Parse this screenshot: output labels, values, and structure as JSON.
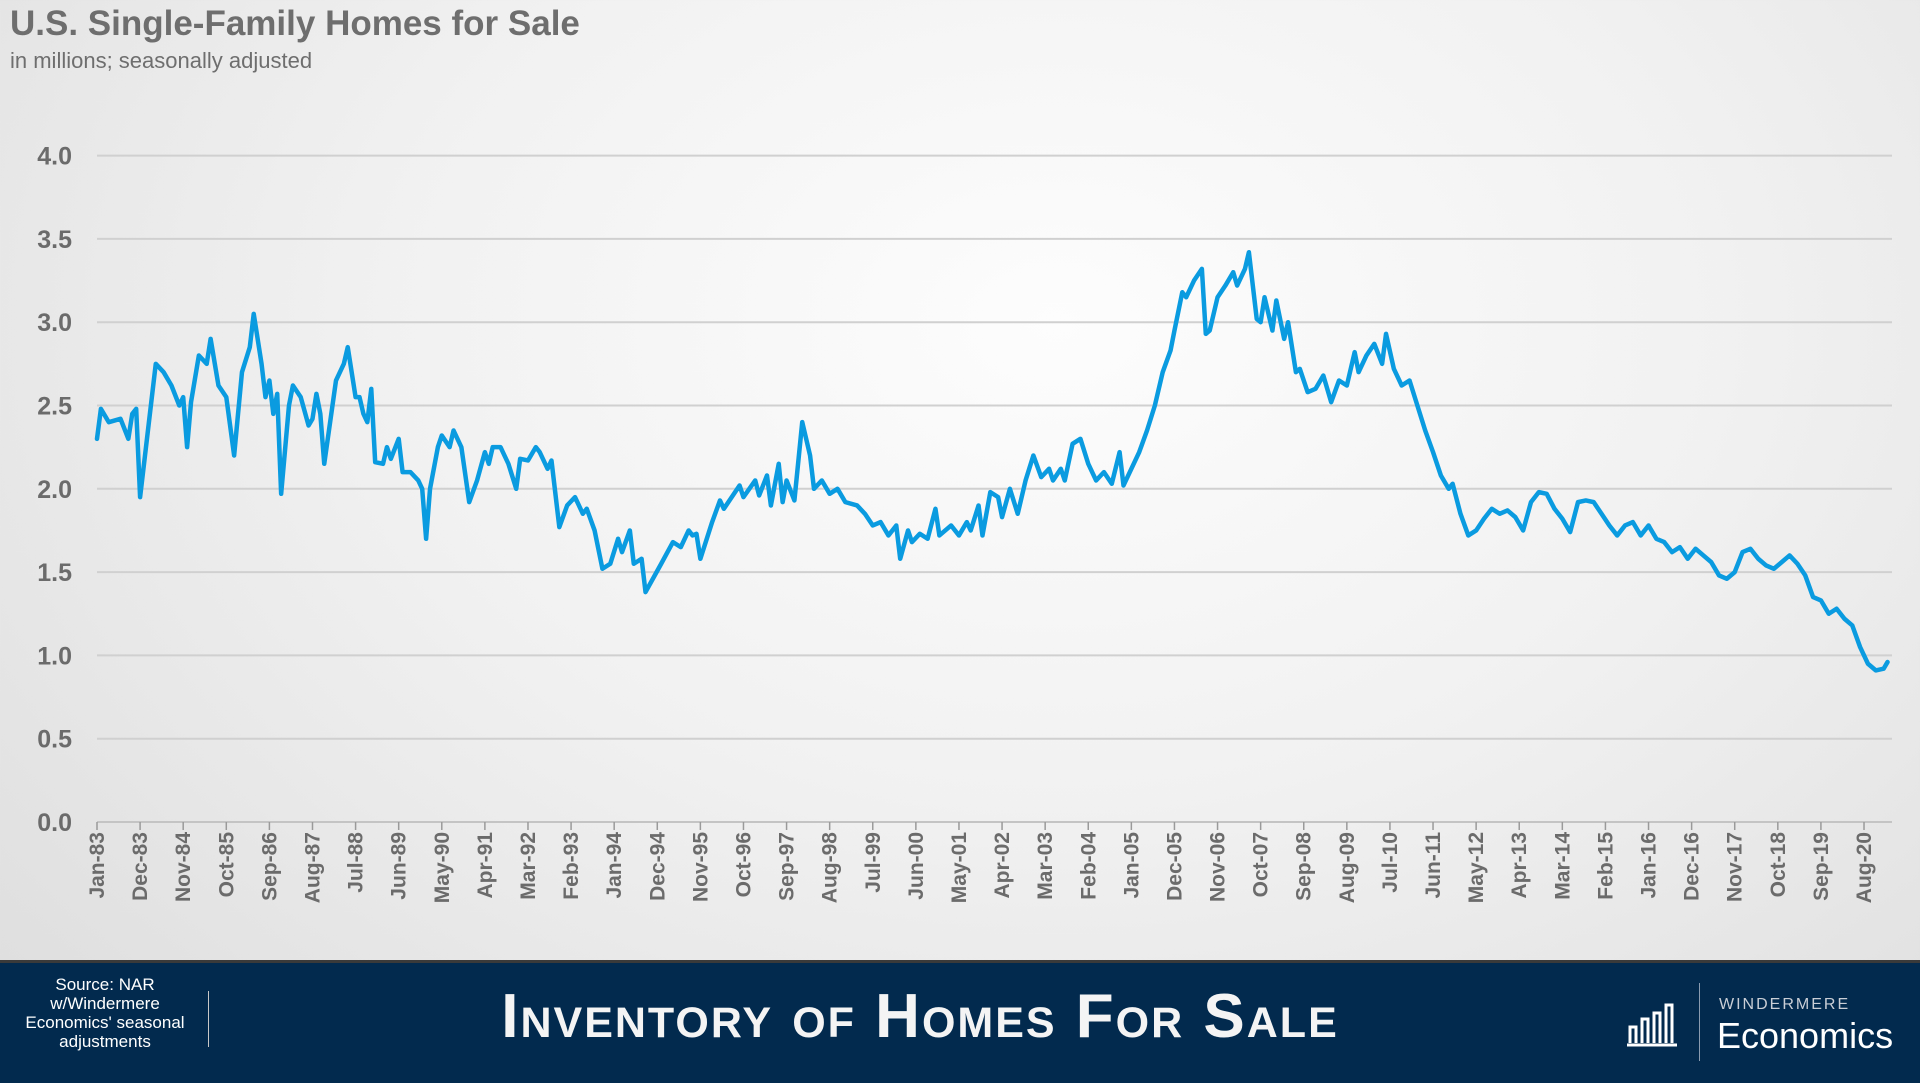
{
  "header": {
    "title": "U.S. Single-Family Homes for Sale",
    "subtitle": "in millions; seasonally adjusted"
  },
  "footer": {
    "source": "Source: NAR w/Windermere Economics' seasonal adjustments",
    "banner": "Inventory of Homes For Sale",
    "brand_top": "WINDERMERE",
    "brand_bottom": "Economics",
    "logo_icon": "bar-chart-icon"
  },
  "colors": {
    "line": "#0a9be0",
    "grid": "#d0d0d0",
    "footer": "#022a4e"
  },
  "chart_data": {
    "type": "line",
    "title": "U.S. Single-Family Homes for Sale",
    "subtitle": "in millions; seasonally adjusted",
    "xlabel": "",
    "ylabel": "",
    "ylim": [
      0,
      4
    ],
    "yticks": [
      "0.0",
      "0.5",
      "1.0",
      "1.5",
      "2.0",
      "2.5",
      "3.0",
      "3.5",
      "4.0"
    ],
    "xticks": [
      "Jan-83",
      "Dec-83",
      "Nov-84",
      "Oct-85",
      "Sep-86",
      "Aug-87",
      "Jul-88",
      "Jun-89",
      "May-90",
      "Apr-91",
      "Mar-92",
      "Feb-93",
      "Jan-94",
      "Dec-94",
      "Nov-95",
      "Oct-96",
      "Sep-97",
      "Aug-98",
      "Jul-99",
      "Jun-00",
      "May-01",
      "Apr-02",
      "Mar-03",
      "Feb-04",
      "Jan-05",
      "Dec-05",
      "Nov-06",
      "Oct-07",
      "Sep-08",
      "Aug-09",
      "Jul-10",
      "Jun-11",
      "May-12",
      "Apr-13",
      "Mar-14",
      "Feb-15",
      "Jan-16",
      "Dec-16",
      "Nov-17",
      "Oct-18",
      "Sep-19",
      "Aug-20"
    ],
    "grid": true,
    "legend": "none",
    "series": [
      {
        "points": [
          [
            "1983-01",
            2.3
          ],
          [
            "1983-02",
            2.48
          ],
          [
            "1983-04",
            2.4
          ],
          [
            "1983-07",
            2.42
          ],
          [
            "1983-09",
            2.3
          ],
          [
            "1983-10",
            2.45
          ],
          [
            "1983-11",
            2.48
          ],
          [
            "1983-12",
            1.95
          ],
          [
            "1984-02",
            2.35
          ],
          [
            "1984-04",
            2.75
          ],
          [
            "1984-06",
            2.7
          ],
          [
            "1984-08",
            2.62
          ],
          [
            "1984-10",
            2.5
          ],
          [
            "1984-11",
            2.55
          ],
          [
            "1984-12",
            2.25
          ],
          [
            "1985-01",
            2.52
          ],
          [
            "1985-03",
            2.8
          ],
          [
            "1985-05",
            2.75
          ],
          [
            "1985-06",
            2.9
          ],
          [
            "1985-08",
            2.62
          ],
          [
            "1985-10",
            2.55
          ],
          [
            "1985-12",
            2.2
          ],
          [
            "1986-02",
            2.7
          ],
          [
            "1986-04",
            2.85
          ],
          [
            "1986-05",
            3.05
          ],
          [
            "1986-07",
            2.75
          ],
          [
            "1986-08",
            2.55
          ],
          [
            "1986-09",
            2.65
          ],
          [
            "1986-10",
            2.45
          ],
          [
            "1986-11",
            2.57
          ],
          [
            "1986-12",
            1.97
          ],
          [
            "1987-02",
            2.5
          ],
          [
            "1987-03",
            2.62
          ],
          [
            "1987-05",
            2.55
          ],
          [
            "1987-07",
            2.38
          ],
          [
            "1987-08",
            2.42
          ],
          [
            "1987-09",
            2.57
          ],
          [
            "1987-10",
            2.45
          ],
          [
            "1987-11",
            2.15
          ],
          [
            "1988-02",
            2.65
          ],
          [
            "1988-04",
            2.75
          ],
          [
            "1988-05",
            2.85
          ],
          [
            "1988-07",
            2.55
          ],
          [
            "1988-08",
            2.55
          ],
          [
            "1988-09",
            2.45
          ],
          [
            "1988-10",
            2.4
          ],
          [
            "1988-11",
            2.6
          ],
          [
            "1988-12",
            2.16
          ],
          [
            "1989-02",
            2.15
          ],
          [
            "1989-03",
            2.25
          ],
          [
            "1989-04",
            2.18
          ],
          [
            "1989-06",
            2.3
          ],
          [
            "1989-07",
            2.1
          ],
          [
            "1989-09",
            2.1
          ],
          [
            "1989-11",
            2.05
          ],
          [
            "1989-12",
            2.0
          ],
          [
            "1990-01",
            1.7
          ],
          [
            "1990-02",
            2.0
          ],
          [
            "1990-04",
            2.25
          ],
          [
            "1990-05",
            2.32
          ],
          [
            "1990-07",
            2.25
          ],
          [
            "1990-08",
            2.35
          ],
          [
            "1990-10",
            2.25
          ],
          [
            "1990-12",
            1.92
          ],
          [
            "1991-02",
            2.05
          ],
          [
            "1991-04",
            2.22
          ],
          [
            "1991-05",
            2.15
          ],
          [
            "1991-06",
            2.25
          ],
          [
            "1991-08",
            2.25
          ],
          [
            "1991-10",
            2.15
          ],
          [
            "1991-12",
            2.0
          ],
          [
            "1992-01",
            2.18
          ],
          [
            "1992-03",
            2.17
          ],
          [
            "1992-05",
            2.25
          ],
          [
            "1992-06",
            2.22
          ],
          [
            "1992-08",
            2.12
          ],
          [
            "1992-09",
            2.17
          ],
          [
            "1992-11",
            1.77
          ],
          [
            "1993-01",
            1.9
          ],
          [
            "1993-03",
            1.95
          ],
          [
            "1993-05",
            1.85
          ],
          [
            "1993-06",
            1.88
          ],
          [
            "1993-08",
            1.75
          ],
          [
            "1993-10",
            1.52
          ],
          [
            "1993-12",
            1.55
          ],
          [
            "1994-02",
            1.7
          ],
          [
            "1994-03",
            1.62
          ],
          [
            "1994-05",
            1.75
          ],
          [
            "1994-06",
            1.55
          ],
          [
            "1994-08",
            1.58
          ],
          [
            "1994-09",
            1.38
          ],
          [
            "1995-01",
            1.55
          ],
          [
            "1995-04",
            1.68
          ],
          [
            "1995-06",
            1.65
          ],
          [
            "1995-08",
            1.75
          ],
          [
            "1995-09",
            1.72
          ],
          [
            "1995-10",
            1.73
          ],
          [
            "1995-11",
            1.58
          ],
          [
            "1996-02",
            1.8
          ],
          [
            "1996-04",
            1.93
          ],
          [
            "1996-05",
            1.88
          ],
          [
            "1996-07",
            1.95
          ],
          [
            "1996-09",
            2.02
          ],
          [
            "1996-10",
            1.95
          ],
          [
            "1997-01",
            2.05
          ],
          [
            "1997-02",
            1.96
          ],
          [
            "1997-04",
            2.08
          ],
          [
            "1997-05",
            1.9
          ],
          [
            "1997-07",
            2.15
          ],
          [
            "1997-08",
            1.92
          ],
          [
            "1997-09",
            2.05
          ],
          [
            "1997-11",
            1.93
          ],
          [
            "1998-01",
            2.4
          ],
          [
            "1998-03",
            2.2
          ],
          [
            "1998-04",
            2.0
          ],
          [
            "1998-06",
            2.05
          ],
          [
            "1998-08",
            1.97
          ],
          [
            "1998-10",
            2.0
          ],
          [
            "1998-12",
            1.92
          ],
          [
            "1999-03",
            1.9
          ],
          [
            "1999-05",
            1.85
          ],
          [
            "1999-07",
            1.78
          ],
          [
            "1999-09",
            1.8
          ],
          [
            "1999-11",
            1.72
          ],
          [
            "2000-01",
            1.78
          ],
          [
            "2000-02",
            1.58
          ],
          [
            "2000-04",
            1.75
          ],
          [
            "2000-05",
            1.68
          ],
          [
            "2000-07",
            1.73
          ],
          [
            "2000-09",
            1.7
          ],
          [
            "2000-11",
            1.88
          ],
          [
            "2000-12",
            1.72
          ],
          [
            "2001-03",
            1.78
          ],
          [
            "2001-05",
            1.72
          ],
          [
            "2001-07",
            1.8
          ],
          [
            "2001-08",
            1.75
          ],
          [
            "2001-10",
            1.9
          ],
          [
            "2001-11",
            1.72
          ],
          [
            "2002-01",
            1.98
          ],
          [
            "2002-03",
            1.95
          ],
          [
            "2002-04",
            1.83
          ],
          [
            "2002-06",
            2.0
          ],
          [
            "2002-08",
            1.85
          ],
          [
            "2002-10",
            2.05
          ],
          [
            "2002-12",
            2.2
          ],
          [
            "2003-02",
            2.07
          ],
          [
            "2003-04",
            2.12
          ],
          [
            "2003-05",
            2.05
          ],
          [
            "2003-07",
            2.12
          ],
          [
            "2003-08",
            2.05
          ],
          [
            "2003-10",
            2.27
          ],
          [
            "2003-12",
            2.3
          ],
          [
            "2004-02",
            2.15
          ],
          [
            "2004-04",
            2.05
          ],
          [
            "2004-06",
            2.1
          ],
          [
            "2004-08",
            2.03
          ],
          [
            "2004-10",
            2.22
          ],
          [
            "2004-11",
            2.02
          ],
          [
            "2005-01",
            2.12
          ],
          [
            "2005-03",
            2.22
          ],
          [
            "2005-05",
            2.35
          ],
          [
            "2005-07",
            2.5
          ],
          [
            "2005-09",
            2.7
          ],
          [
            "2005-11",
            2.83
          ],
          [
            "2005-12",
            2.95
          ],
          [
            "2006-02",
            3.18
          ],
          [
            "2006-03",
            3.15
          ],
          [
            "2006-05",
            3.25
          ],
          [
            "2006-07",
            3.32
          ],
          [
            "2006-08",
            2.93
          ],
          [
            "2006-09",
            2.95
          ],
          [
            "2006-11",
            3.15
          ],
          [
            "2007-01",
            3.22
          ],
          [
            "2007-03",
            3.3
          ],
          [
            "2007-04",
            3.22
          ],
          [
            "2007-06",
            3.32
          ],
          [
            "2007-07",
            3.42
          ],
          [
            "2007-09",
            3.02
          ],
          [
            "2007-10",
            3.0
          ],
          [
            "2007-11",
            3.15
          ],
          [
            "2008-01",
            2.95
          ],
          [
            "2008-02",
            3.13
          ],
          [
            "2008-04",
            2.9
          ],
          [
            "2008-05",
            3.0
          ],
          [
            "2008-07",
            2.7
          ],
          [
            "2008-08",
            2.72
          ],
          [
            "2008-10",
            2.58
          ],
          [
            "2008-12",
            2.6
          ],
          [
            "2009-02",
            2.68
          ],
          [
            "2009-04",
            2.52
          ],
          [
            "2009-06",
            2.65
          ],
          [
            "2009-08",
            2.62
          ],
          [
            "2009-10",
            2.82
          ],
          [
            "2009-11",
            2.7
          ],
          [
            "2010-01",
            2.8
          ],
          [
            "2010-03",
            2.87
          ],
          [
            "2010-05",
            2.75
          ],
          [
            "2010-06",
            2.93
          ],
          [
            "2010-08",
            2.72
          ],
          [
            "2010-10",
            2.62
          ],
          [
            "2010-12",
            2.65
          ],
          [
            "2011-02",
            2.5
          ],
          [
            "2011-04",
            2.35
          ],
          [
            "2011-06",
            2.22
          ],
          [
            "2011-08",
            2.08
          ],
          [
            "2011-10",
            2.0
          ],
          [
            "2011-11",
            2.03
          ],
          [
            "2012-01",
            1.85
          ],
          [
            "2012-03",
            1.72
          ],
          [
            "2012-05",
            1.75
          ],
          [
            "2012-07",
            1.82
          ],
          [
            "2012-09",
            1.88
          ],
          [
            "2012-11",
            1.85
          ],
          [
            "2013-01",
            1.87
          ],
          [
            "2013-03",
            1.83
          ],
          [
            "2013-05",
            1.75
          ],
          [
            "2013-07",
            1.92
          ],
          [
            "2013-09",
            1.98
          ],
          [
            "2013-11",
            1.97
          ],
          [
            "2014-01",
            1.88
          ],
          [
            "2014-03",
            1.82
          ],
          [
            "2014-05",
            1.74
          ],
          [
            "2014-07",
            1.92
          ],
          [
            "2014-09",
            1.93
          ],
          [
            "2014-11",
            1.92
          ],
          [
            "2015-01",
            1.85
          ],
          [
            "2015-03",
            1.78
          ],
          [
            "2015-05",
            1.72
          ],
          [
            "2015-07",
            1.78
          ],
          [
            "2015-09",
            1.8
          ],
          [
            "2015-11",
            1.72
          ],
          [
            "2016-01",
            1.78
          ],
          [
            "2016-03",
            1.7
          ],
          [
            "2016-05",
            1.68
          ],
          [
            "2016-07",
            1.62
          ],
          [
            "2016-09",
            1.65
          ],
          [
            "2016-11",
            1.58
          ],
          [
            "2017-01",
            1.64
          ],
          [
            "2017-03",
            1.6
          ],
          [
            "2017-05",
            1.56
          ],
          [
            "2017-07",
            1.48
          ],
          [
            "2017-09",
            1.46
          ],
          [
            "2017-11",
            1.5
          ],
          [
            "2018-01",
            1.62
          ],
          [
            "2018-03",
            1.64
          ],
          [
            "2018-05",
            1.58
          ],
          [
            "2018-07",
            1.54
          ],
          [
            "2018-09",
            1.52
          ],
          [
            "2018-11",
            1.56
          ],
          [
            "2019-01",
            1.6
          ],
          [
            "2019-03",
            1.55
          ],
          [
            "2019-05",
            1.48
          ],
          [
            "2019-07",
            1.35
          ],
          [
            "2019-09",
            1.33
          ],
          [
            "2019-11",
            1.25
          ],
          [
            "2020-01",
            1.28
          ],
          [
            "2020-03",
            1.22
          ],
          [
            "2020-05",
            1.18
          ],
          [
            "2020-07",
            1.05
          ],
          [
            "2020-09",
            0.95
          ],
          [
            "2020-11",
            0.91
          ],
          [
            "2021-01",
            0.92
          ],
          [
            "2021-02",
            0.96
          ]
        ]
      }
    ]
  }
}
